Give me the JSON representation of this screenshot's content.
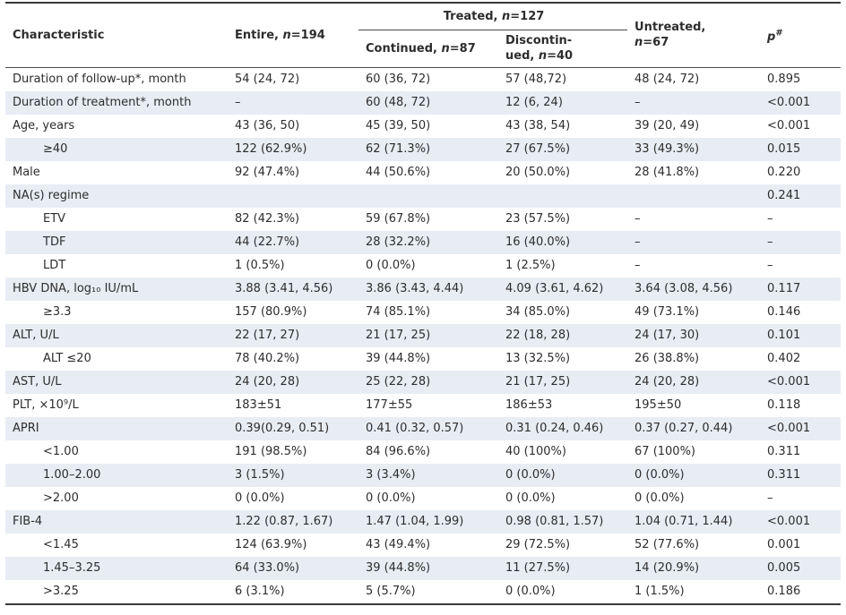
{
  "table": {
    "header": {
      "characteristic": "Characteristic",
      "entire": {
        "pre": "Entire, ",
        "n": "n",
        "post": "=194"
      },
      "treated": {
        "pre": "Treated, ",
        "n": "n",
        "post": "=127"
      },
      "continued": {
        "pre": "Continued, ",
        "n": "n",
        "post": "=87"
      },
      "discontinued": {
        "line1": "Discontin-",
        "line2_pre": "ued, ",
        "n": "n",
        "post": "=40"
      },
      "untreated": {
        "line1": "Untreated,",
        "n": "n",
        "post": "=67"
      },
      "p": {
        "base": "p",
        "sup": "#"
      }
    },
    "rows": [
      {
        "label": "Duration of follow-up*, month",
        "indent": false,
        "cells": [
          "54 (24, 72)",
          "60 (36, 72)",
          "57 (48,72)",
          "48 (24, 72)",
          "0.895"
        ]
      },
      {
        "label": "Duration of treatment*, month",
        "indent": false,
        "cells": [
          "–",
          "60 (48, 72)",
          "12 (6, 24)",
          "–",
          "<0.001"
        ]
      },
      {
        "label": "Age, years",
        "indent": false,
        "cells": [
          "43 (36, 50)",
          "45 (39, 50)",
          "43 (38, 54)",
          "39 (20, 49)",
          "<0.001"
        ]
      },
      {
        "label": "≥40",
        "indent": true,
        "cells": [
          "122 (62.9%)",
          "62 (71.3%)",
          "27 (67.5%)",
          "33 (49.3%)",
          "0.015"
        ]
      },
      {
        "label": "Male",
        "indent": false,
        "cells": [
          "92 (47.4%)",
          "44 (50.6%)",
          "20 (50.0%)",
          "28 (41.8%)",
          "0.220"
        ]
      },
      {
        "label": "NA(s) regime",
        "indent": false,
        "cells": [
          "",
          "",
          "",
          "",
          "0.241"
        ]
      },
      {
        "label": "ETV",
        "indent": true,
        "cells": [
          "82 (42.3%)",
          "59 (67.8%)",
          "23 (57.5%)",
          "–",
          "–"
        ]
      },
      {
        "label": "TDF",
        "indent": true,
        "cells": [
          "44 (22.7%)",
          "28 (32.2%)",
          "16 (40.0%)",
          "–",
          "–"
        ]
      },
      {
        "label": "LDT",
        "indent": true,
        "cells": [
          "1 (0.5%)",
          "0 (0.0%)",
          "1 (2.5%)",
          "–",
          "–"
        ]
      },
      {
        "label": "HBV DNA, log₁₀ IU/mL",
        "indent": false,
        "cells": [
          "3.88 (3.41, 4.56)",
          "3.86 (3.43, 4.44)",
          "4.09 (3.61, 4.62)",
          "3.64 (3.08, 4.56)",
          "0.117"
        ]
      },
      {
        "label": "≥3.3",
        "indent": true,
        "cells": [
          "157 (80.9%)",
          "74 (85.1%)",
          "34 (85.0%)",
          "49 (73.1%)",
          "0.146"
        ]
      },
      {
        "label": "ALT, U/L",
        "indent": false,
        "cells": [
          "22 (17, 27)",
          "21 (17, 25)",
          "22 (18, 28)",
          "24 (17, 30)",
          "0.101"
        ]
      },
      {
        "label": "ALT ≤20",
        "indent": true,
        "cells": [
          "78 (40.2%)",
          "39 (44.8%)",
          "13 (32.5%)",
          "26 (38.8%)",
          "0.402"
        ]
      },
      {
        "label": "AST, U/L",
        "indent": false,
        "cells": [
          "24 (20, 28)",
          "25 (22, 28)",
          "21 (17, 25)",
          "24 (20, 28)",
          "<0.001"
        ]
      },
      {
        "label": "PLT, ×10⁹/L",
        "indent": false,
        "cells": [
          "183±51",
          "177±55",
          "186±53",
          "195±50",
          "0.118"
        ]
      },
      {
        "label": "APRI",
        "indent": false,
        "cells": [
          "0.39(0.29, 0.51)",
          "0.41 (0.32, 0.57)",
          "0.31 (0.24, 0.46)",
          "0.37 (0.27, 0.44)",
          "<0.001"
        ]
      },
      {
        "label": "<1.00",
        "indent": true,
        "cells": [
          "191 (98.5%)",
          "84 (96.6%)",
          "40 (100%)",
          "67 (100%)",
          "0.311"
        ]
      },
      {
        "label": "1.00–2.00",
        "indent": true,
        "cells": [
          "3 (1.5%)",
          "3 (3.4%)",
          "0 (0.0%)",
          "0 (0.0%)",
          "0.311"
        ]
      },
      {
        "label": ">2.00",
        "indent": true,
        "cells": [
          "0 (0.0%)",
          "0 (0.0%)",
          "0 (0.0%)",
          "0 (0.0%)",
          "–"
        ]
      },
      {
        "label": "FIB-4",
        "indent": false,
        "cells": [
          "1.22 (0.87, 1.67)",
          "1.47 (1.04, 1.99)",
          "0.98 (0.81, 1.57)",
          "1.04 (0.71, 1.44)",
          "<0.001"
        ]
      },
      {
        "label": "<1.45",
        "indent": true,
        "cells": [
          "124 (63.9%)",
          "43 (49.4%)",
          "29 (72.5%)",
          "52 (77.6%)",
          "0.001"
        ]
      },
      {
        "label": "1.45–3.25",
        "indent": true,
        "cells": [
          "64 (33.0%)",
          "39 (44.8%)",
          "11 (27.5%)",
          "14 (20.9%)",
          "0.005"
        ]
      },
      {
        "label": ">3.25",
        "indent": true,
        "cells": [
          "6 (3.1%)",
          "5 (5.7%)",
          "0 (0.0%)",
          "1 (1.5%)",
          "0.186"
        ]
      }
    ]
  },
  "colors": {
    "stripe": "#e8edf3",
    "text": "#2d2d2d",
    "rule_dark": "#3a3a3a",
    "rule_mid": "#4a4a4a"
  }
}
